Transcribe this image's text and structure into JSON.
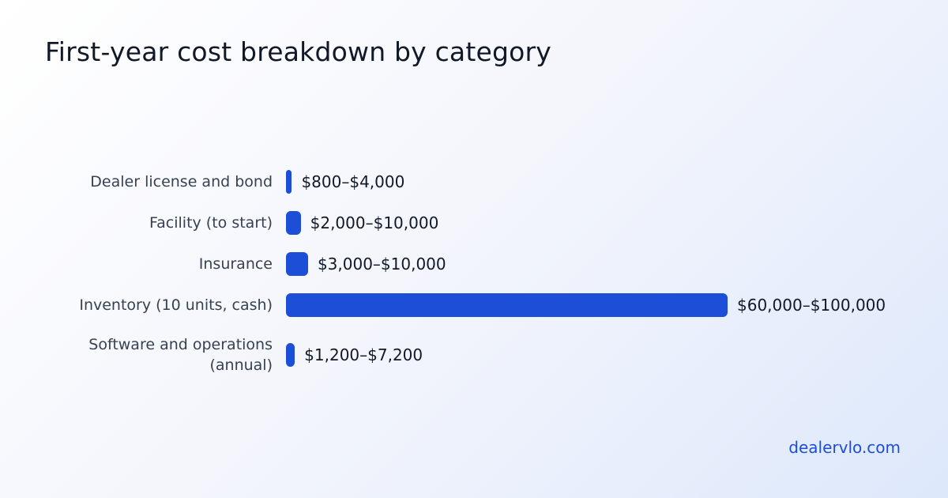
{
  "chart_data": {
    "type": "bar",
    "orientation": "horizontal",
    "title": "First-year cost breakdown by category",
    "categories": [
      "Dealer license and bond",
      "Facility (to start)",
      "Insurance",
      "Inventory (10 units, cash)",
      "Software and operations (annual)"
    ],
    "values": [
      800,
      2000,
      3000,
      60000,
      1200
    ],
    "value_labels": [
      "$800–$4,000",
      "$2,000–$10,000",
      "$3,000–$10,000",
      "$60,000–$100,000",
      "$1,200–$7,200"
    ],
    "color": "#1d4ed8"
  },
  "footer": "dealervlo.com"
}
